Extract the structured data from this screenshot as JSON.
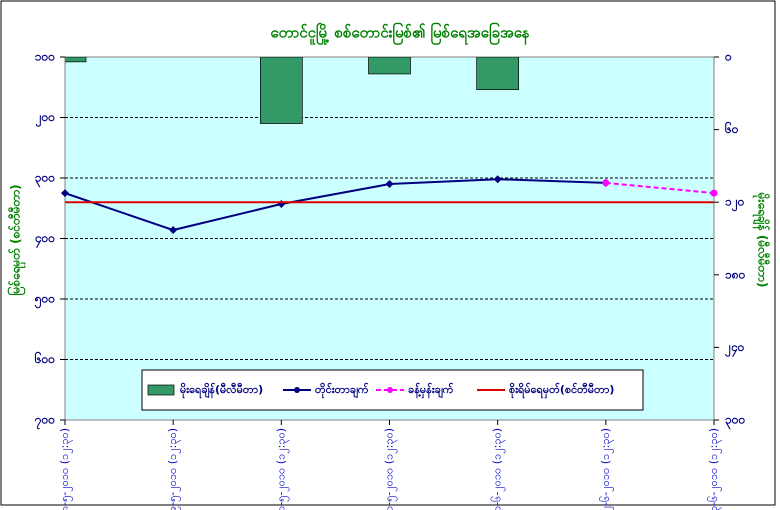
{
  "chart_data": {
    "type": "combo",
    "title": "တောင်ငူမြို့ စစ်တောင်းမြစ်၏ မြစ်ရေအခြေအနေ",
    "ylabel": "မြစ်ရေမှတ် (စင်တီမီတာ)",
    "y2label": "မိုးရေချိန် (မီလီမီတာ)",
    "categories": [
      "၂၈-၅-၂၀၁၀ (၁၂:၃၀)",
      "၂၉-၅-၂၀၁၀ (၁၂:၃၀)",
      "၃၀-၅-၂၀၁၀ (၁၂:၃၀)",
      "၃၁-၅-၂၀၁၀ (၁၂:၃၀)",
      "၁-၆-၂၀၁၀ (၁၂:၃၀)",
      "၂-၆-၂၀၁၀ (၁၂:၃၀)",
      "၃-၆-၂၀၁၀ (၁၂:၃၀)"
    ],
    "ylim": [
      100,
      700
    ],
    "yreverse": true,
    "yticks": [
      {
        "value": 100,
        "label": "၁၀၀"
      },
      {
        "value": 200,
        "label": "၂၀၀"
      },
      {
        "value": 300,
        "label": "၃၀၀"
      },
      {
        "value": 400,
        "label": "၄၀၀"
      },
      {
        "value": 500,
        "label": "၅၀၀"
      },
      {
        "value": 600,
        "label": "၆၀၀"
      },
      {
        "value": 700,
        "label": "၇၀၀"
      }
    ],
    "y2lim": [
      0,
      300
    ],
    "y2reverse": true,
    "y2ticks": [
      {
        "value": 0,
        "label": "၀"
      },
      {
        "value": 60,
        "label": "၆၀"
      },
      {
        "value": 120,
        "label": "၁၂၀"
      },
      {
        "value": 180,
        "label": "၁၈၀"
      },
      {
        "value": 240,
        "label": "၂၄၀"
      },
      {
        "value": 300,
        "label": "၃၀၀"
      }
    ],
    "grid": true,
    "series": [
      {
        "name": "မိုးရေချိန်(မီလီမီတာ)",
        "kind": "bar",
        "axis": "y2",
        "color": "#339966",
        "values": [
          4,
          0,
          55,
          14,
          27,
          0,
          0
        ]
      },
      {
        "name": "တိုင်းတာချက်",
        "kind": "line",
        "color": "#000080",
        "values": [
          325,
          386,
          343,
          310,
          302,
          308,
          null
        ]
      },
      {
        "name": "ခန့်မှန်းချက်",
        "kind": "line",
        "dashed": true,
        "color": "#ff00ff",
        "values": [
          null,
          null,
          null,
          null,
          null,
          308,
          325
        ]
      }
    ],
    "reference_lines": [
      {
        "name": "စိုးရိမ်ရေမှတ်(စင်တီမီတာ)",
        "color": "#e00000",
        "value": 340
      }
    ]
  }
}
